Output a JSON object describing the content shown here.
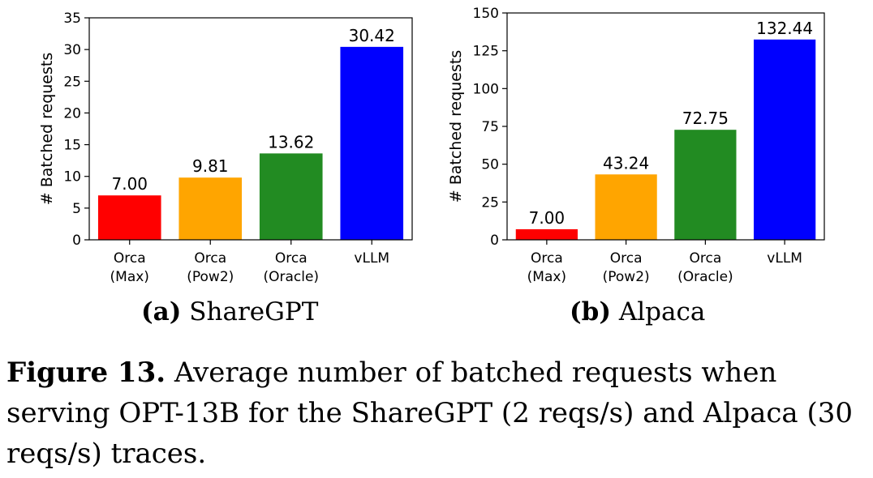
{
  "chart_data": [
    {
      "type": "bar",
      "categories": [
        "Orca\n(Max)",
        "Orca\n(Pow2)",
        "Orca\n(Oracle)",
        "vLLM"
      ],
      "values": [
        7.0,
        9.81,
        13.62,
        30.42
      ],
      "value_labels": [
        "7.00",
        "9.81",
        "13.62",
        "30.42"
      ],
      "colors": [
        "#ff0000",
        "#ffa500",
        "#228b22",
        "#0000ff"
      ],
      "ylabel": "# Batched requests",
      "ylim": [
        0,
        35
      ],
      "yticks": [
        0,
        5,
        10,
        15,
        20,
        25,
        30,
        35
      ],
      "grid": false,
      "subcaption_tag": "(a)",
      "subcaption_text": "ShareGPT"
    },
    {
      "type": "bar",
      "categories": [
        "Orca\n(Max)",
        "Orca\n(Pow2)",
        "Orca\n(Oracle)",
        "vLLM"
      ],
      "values": [
        7.0,
        43.24,
        72.75,
        132.44
      ],
      "value_labels": [
        "7.00",
        "43.24",
        "72.75",
        "132.44"
      ],
      "colors": [
        "#ff0000",
        "#ffa500",
        "#228b22",
        "#0000ff"
      ],
      "ylabel": "# Batched requests",
      "ylim": [
        0,
        150
      ],
      "yticks": [
        0,
        25,
        50,
        75,
        100,
        125,
        150
      ],
      "grid": false,
      "subcaption_tag": "(b)",
      "subcaption_text": "Alpaca"
    }
  ],
  "figure_caption": {
    "label": "Figure 13.",
    "text": "Average number of batched requests when serving OPT-13B for the ShareGPT (2 reqs/s) and Alpaca (30 reqs/s) traces."
  }
}
